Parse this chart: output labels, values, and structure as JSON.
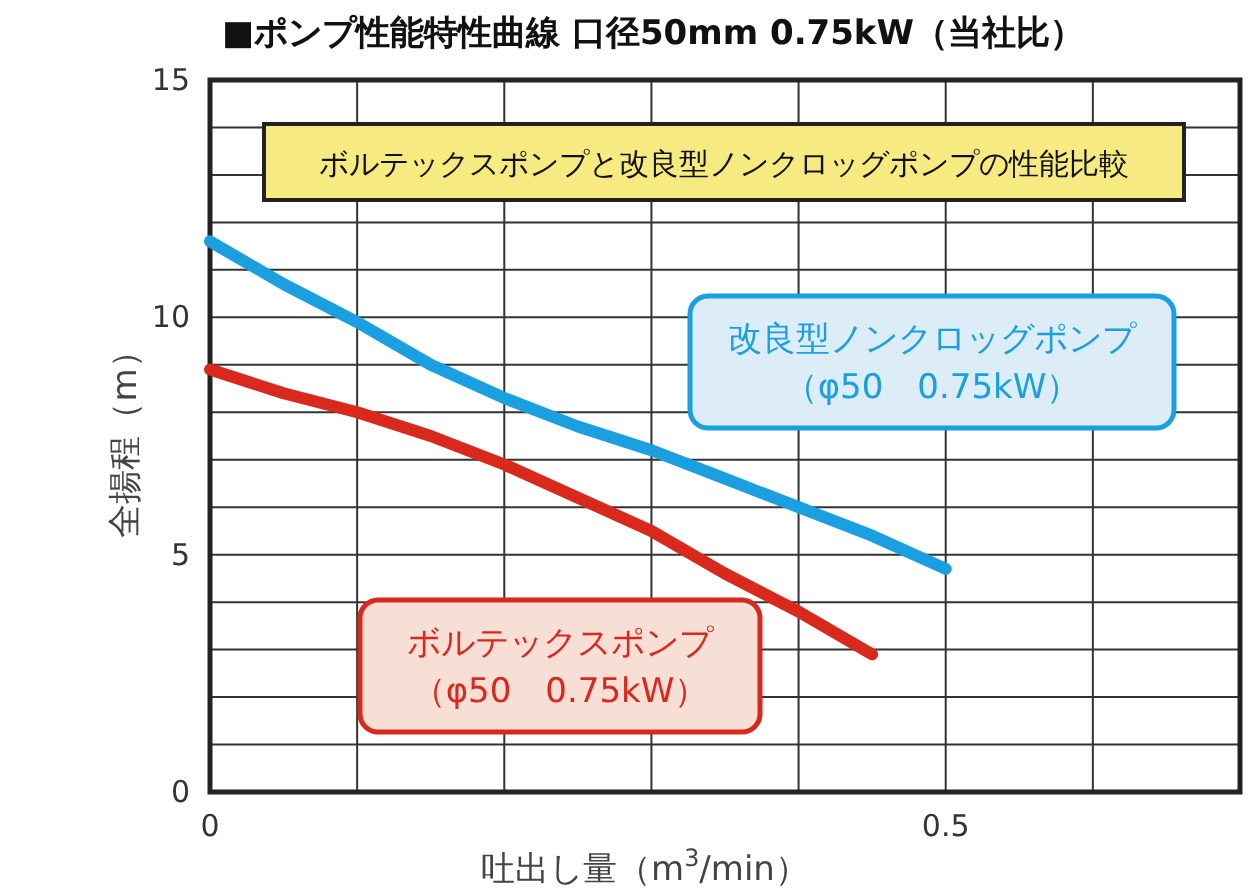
{
  "chart_data": {
    "type": "line",
    "title": "■ポンプ性能特性曲線 口径50mm 0.75kW（当社比）",
    "xlabel": "吐出し量（m$^{3}$/min）",
    "ylabel": "全揚程（m）",
    "annotations": [
      "ボルテックスポンプと改良型ノンクロッグポンプの性能比較"
    ],
    "series": [
      {
        "name": "改良型ノンクロッグポンプ（φ50　0.75kW）",
        "color": "#1aa0e0",
        "x": [
          0,
          0.05,
          0.1,
          0.15,
          0.2,
          0.25,
          0.3,
          0.35,
          0.4,
          0.45,
          0.5
        ],
        "values": [
          11.6,
          10.7,
          9.9,
          9.0,
          8.3,
          7.7,
          7.2,
          6.6,
          6.0,
          5.4,
          4.7
        ]
      },
      {
        "name": "ボルテックスポンプ（φ50　0.75kW）",
        "color": "#d9291c",
        "x": [
          0,
          0.05,
          0.1,
          0.15,
          0.2,
          0.25,
          0.3,
          0.35,
          0.4,
          0.45
        ],
        "values": [
          8.9,
          8.4,
          8.0,
          7.5,
          6.9,
          6.2,
          5.5,
          4.6,
          3.8,
          2.9
        ]
      }
    ],
    "xlim": [
      0,
      0.7
    ],
    "ylim": [
      0,
      15
    ],
    "xticks": [
      0,
      {
        "value": 0.1,
        "label": null
      },
      {
        "value": 0.2,
        "label": null
      },
      {
        "value": 0.3,
        "label": null
      },
      {
        "value": 0.4,
        "label": null
      },
      0.5,
      {
        "value": 0.6,
        "label": null
      },
      {
        "value": 0.7,
        "label": null
      }
    ],
    "yticks": [
      0,
      {
        "value": 1,
        "label": null
      },
      {
        "value": 2,
        "label": null
      },
      {
        "value": 3,
        "label": null
      },
      {
        "value": 4,
        "label": null
      },
      5,
      {
        "value": 6,
        "label": null
      },
      {
        "value": 7,
        "label": null
      },
      {
        "value": 8,
        "label": null
      },
      {
        "value": 9,
        "label": null
      },
      10,
      {
        "value": 11,
        "label": null
      },
      {
        "value": 12,
        "label": null
      },
      {
        "value": 13,
        "label": null
      },
      {
        "value": 14,
        "label": null
      },
      15
    ],
    "grid": true,
    "marker": "none",
    "line_style": "solid"
  }
}
